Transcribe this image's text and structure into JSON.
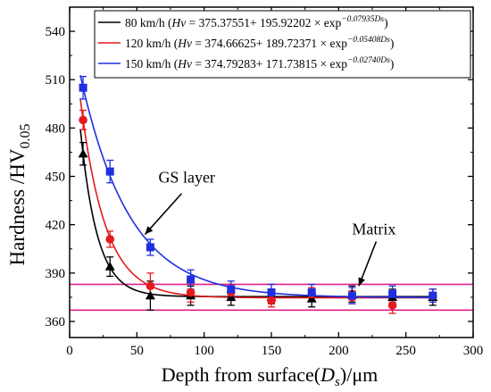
{
  "chart_data": {
    "type": "scatter",
    "xlabel_main": "Depth from surface(",
    "xlabel_sym": "D",
    "xlabel_sub": "s",
    "xlabel_tail": ")/μm",
    "ylabel_main": "Hardness /HV",
    "ylabel_sub": "0.05",
    "xlim": [
      0,
      300
    ],
    "ylim": [
      350,
      555
    ],
    "xticks": [
      0,
      50,
      100,
      150,
      200,
      250,
      300
    ],
    "yticks": [
      360,
      390,
      420,
      450,
      480,
      510,
      540
    ],
    "grid": false,
    "legend_position": "top-right",
    "series": [
      {
        "name": "80 km/h",
        "fit_prefix": "(",
        "fit_var": "Hv",
        "fit_body": " = 375.37551+ 195.92202 × exp",
        "fit_exp": "−0.07935Ds",
        "fit_close": ")",
        "fit": {
          "a": 375.37551,
          "b": 195.92202,
          "k": 0.07935
        },
        "color": "#000000",
        "marker": "triangle",
        "x": [
          10,
          30,
          60,
          90,
          120,
          150,
          180,
          210,
          240,
          270
        ],
        "y": [
          464,
          394,
          376,
          376,
          375,
          375,
          374,
          377,
          375,
          375
        ],
        "err": [
          7,
          6,
          9,
          6,
          5,
          4,
          5,
          5,
          5,
          5
        ]
      },
      {
        "name": "120 km/h",
        "fit_prefix": "(",
        "fit_var": "Hv",
        "fit_body": " = 374.66625+ 189.72371 × exp",
        "fit_exp": "−0.05408Ds",
        "fit_close": ")",
        "fit": {
          "a": 374.66625,
          "b": 189.72371,
          "k": 0.05408
        },
        "color": "#e41a1c",
        "marker": "circle",
        "x": [
          10,
          30,
          60,
          90,
          120,
          150,
          180,
          210,
          240,
          270
        ],
        "y": [
          485,
          411,
          382,
          378,
          378,
          373,
          377,
          375,
          370,
          376
        ],
        "err": [
          6,
          5,
          8,
          6,
          5,
          4,
          4,
          4,
          5,
          4
        ]
      },
      {
        "name": "150 km/h",
        "fit_prefix": "(",
        "fit_var": "Hv",
        "fit_body": " = 374.79283+ 171.73815 × exp",
        "fit_exp": "−0.02740Ds",
        "fit_close": ")",
        "fit": {
          "a": 374.79283,
          "b": 171.73815,
          "k": 0.0274
        },
        "color": "#1f2fe0",
        "marker": "square",
        "x": [
          10,
          30,
          60,
          90,
          120,
          150,
          180,
          210,
          240,
          270
        ],
        "y": [
          505,
          453,
          406,
          386,
          380,
          378,
          378,
          376,
          377,
          376
        ],
        "err": [
          7,
          7,
          5,
          6,
          5,
          5,
          5,
          5,
          5,
          4
        ]
      }
    ],
    "reference_lines": {
      "color": "#e0208a",
      "y": [
        383,
        367
      ]
    },
    "annotations": [
      {
        "text": "GS layer",
        "x": 66,
        "y": 446,
        "arrow_to": [
          56,
          414
        ]
      },
      {
        "text": "Matrix",
        "x": 210,
        "y": 414,
        "arrow_to": [
          215,
          382
        ]
      }
    ]
  }
}
